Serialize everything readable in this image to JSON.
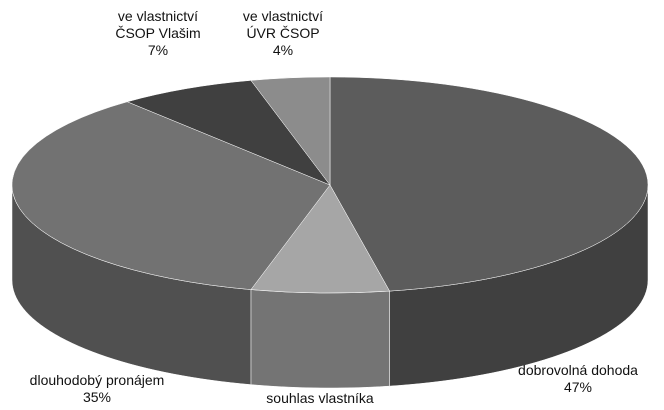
{
  "chart_data": {
    "type": "pie",
    "style": "3d",
    "categories": [
      "dobrovolná dohoda",
      "souhlas vlastníka",
      "dlouhodobý pronájem",
      "ve vlastnictví ČSOP Vlašim",
      "ve vlastnictví ÚVR ČSOP"
    ],
    "values": [
      47,
      7,
      35,
      7,
      4
    ],
    "value_labels": [
      "47%",
      null,
      "35%",
      "7%",
      "4%"
    ],
    "colors": [
      "#5c5c5c",
      "#a6a6a6",
      "#727272",
      "#404040",
      "#8c8c8c"
    ]
  }
}
